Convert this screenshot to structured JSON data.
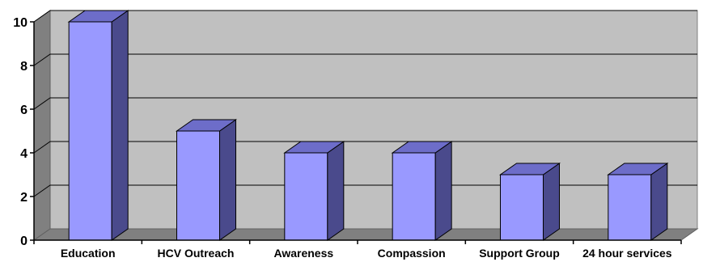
{
  "chart_data": {
    "type": "bar",
    "style": "3d-column",
    "categories": [
      "Education",
      "HCV Outreach",
      "Awareness",
      "Compassion",
      "Support Group",
      "24 hour services"
    ],
    "values": [
      10,
      5,
      4,
      4,
      3,
      3
    ],
    "ylim": [
      0,
      10
    ],
    "yticks": [
      0,
      2,
      4,
      6,
      8,
      10
    ],
    "title": "",
    "xlabel": "",
    "ylabel": "",
    "grid": true,
    "legend": "none",
    "colors": {
      "bar_front": "#9999ff",
      "bar_side": "#4a4a8c",
      "bar_top": "#6d6dc9",
      "wall": "#c0c0c0",
      "floor": "#808080",
      "gridline": "#000000"
    }
  }
}
